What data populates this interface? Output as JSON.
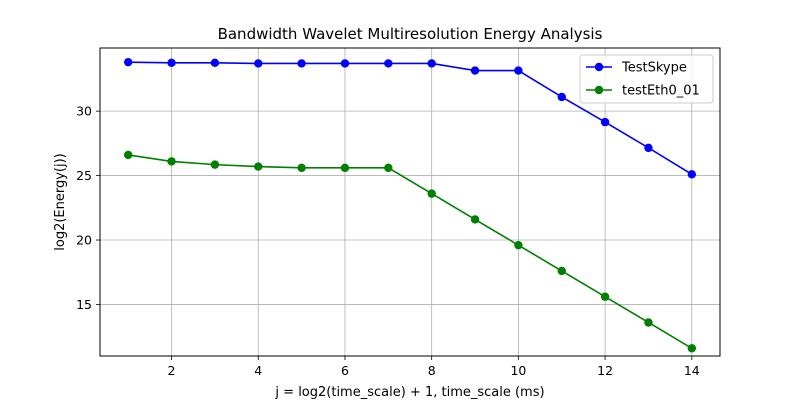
{
  "chart_data": {
    "type": "line",
    "title": "Bandwidth Wavelet Multiresolution Energy Analysis",
    "xlabel": "j = log2(time_scale) + 1, time_scale (ms)",
    "ylabel": "log2(Energy(j))",
    "xlim": [
      0.35,
      14.65
    ],
    "ylim": [
      11.0,
      34.9
    ],
    "xticks": [
      2,
      4,
      6,
      8,
      10,
      12,
      14
    ],
    "yticks": [
      15,
      20,
      25,
      30
    ],
    "grid": true,
    "legend_position": "top-right",
    "x": [
      1,
      2,
      3,
      4,
      5,
      6,
      7,
      8,
      9,
      10,
      11,
      12,
      13,
      14
    ],
    "series": [
      {
        "name": "TestSkype",
        "color": "#0000ff",
        "values": [
          33.8,
          33.75,
          33.75,
          33.7,
          33.7,
          33.7,
          33.7,
          33.7,
          33.15,
          33.15,
          31.1,
          29.15,
          27.15,
          25.1
        ]
      },
      {
        "name": "testEth0_01",
        "color": "#008000",
        "values": [
          26.6,
          26.1,
          25.85,
          25.7,
          25.6,
          25.6,
          25.6,
          23.6,
          21.6,
          19.6,
          17.6,
          15.6,
          13.6,
          11.6
        ]
      }
    ]
  }
}
